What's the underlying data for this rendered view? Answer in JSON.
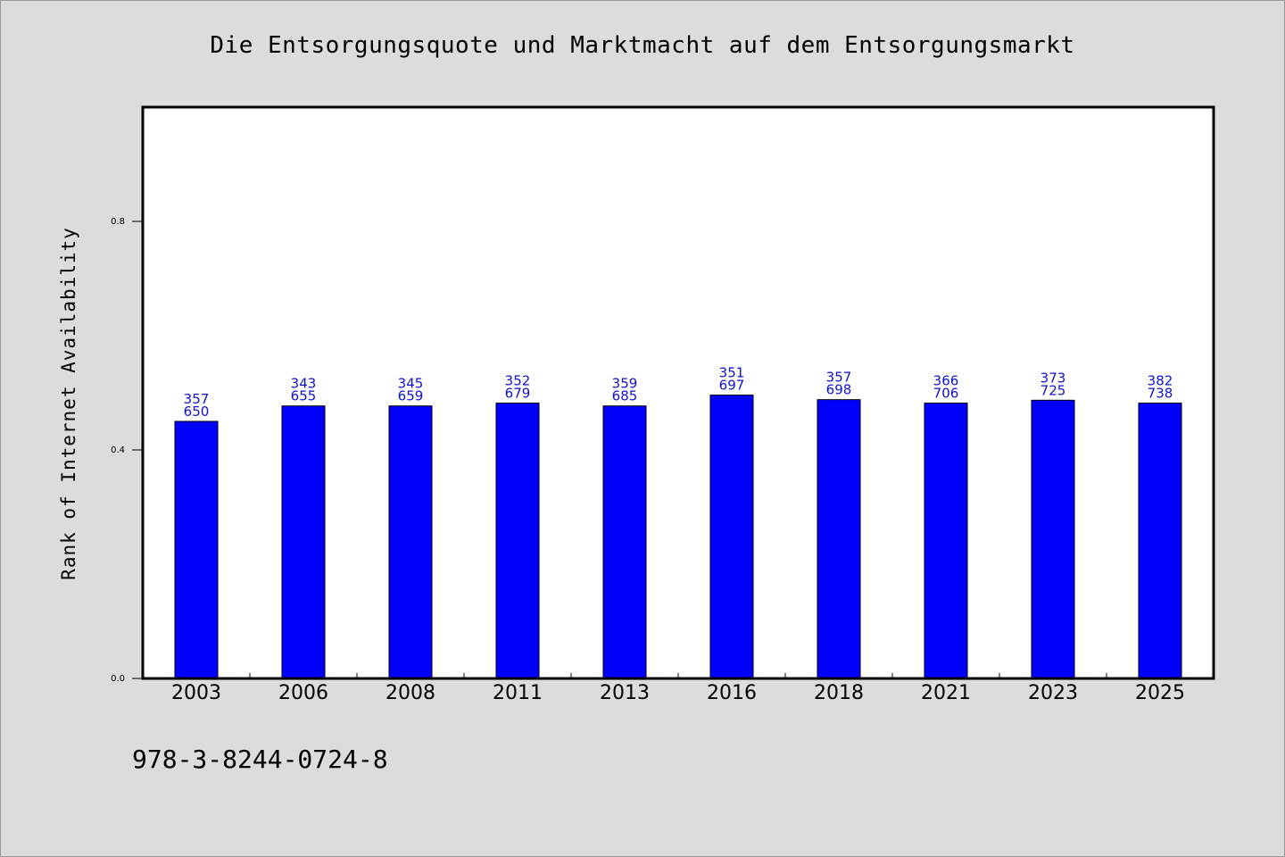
{
  "chart_data": {
    "type": "bar",
    "title": "Die Entsorgungsquote und Marktmacht auf dem Entsorgungsmarkt",
    "ylabel": "Rank of Internet Availability",
    "xlabel": "",
    "categories": [
      "2003",
      "2006",
      "2008",
      "2011",
      "2013",
      "2016",
      "2018",
      "2021",
      "2023",
      "2025"
    ],
    "values": [
      0.45,
      0.477,
      0.477,
      0.482,
      0.477,
      0.496,
      0.488,
      0.482,
      0.487,
      0.482
    ],
    "label_top": [
      "357",
      "343",
      "345",
      "352",
      "359",
      "351",
      "357",
      "366",
      "373",
      "382"
    ],
    "label_bottom": [
      "650",
      "655",
      "659",
      "679",
      "685",
      "697",
      "698",
      "706",
      "725",
      "738"
    ],
    "ylim": [
      0,
      1.0
    ],
    "yticks": [
      0.0,
      0.4,
      0.8
    ],
    "ytick_labels": [
      "0.0",
      "0.4",
      "0.8"
    ],
    "bar_color": "#0000ff",
    "label_color": "#1010cc",
    "grid": false,
    "legend": "none"
  },
  "footer": {
    "isbn": "978-3-8244-0724-8"
  }
}
